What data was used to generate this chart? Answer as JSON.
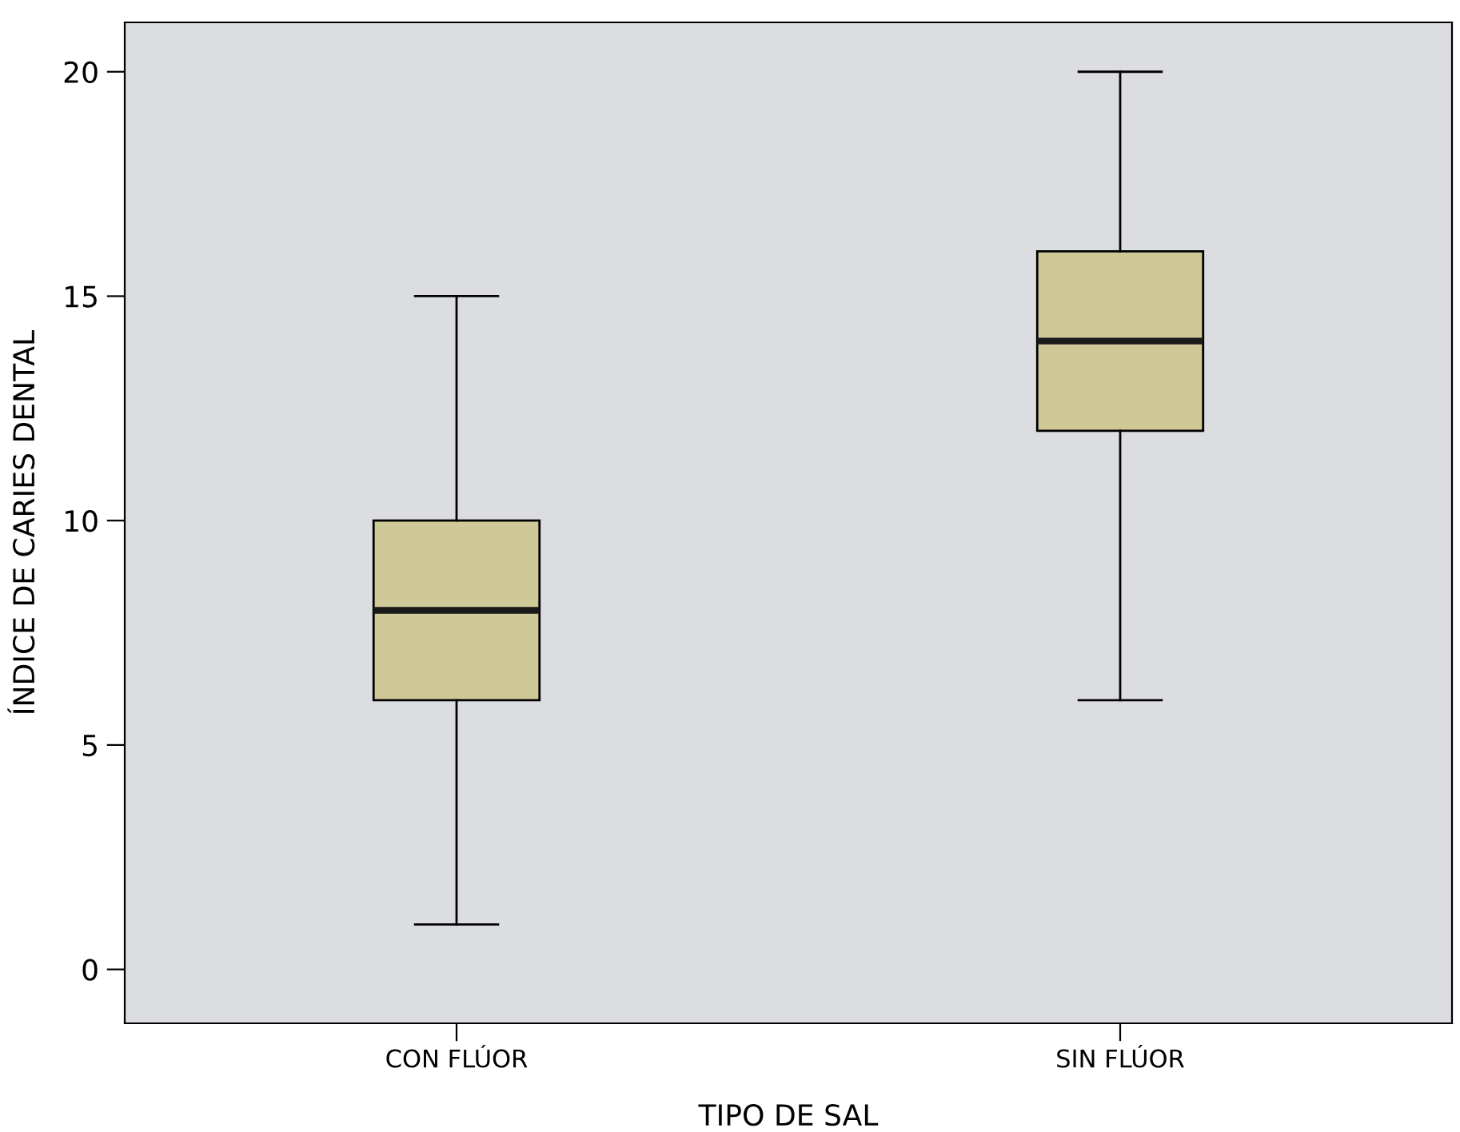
{
  "chart_data": {
    "type": "box",
    "xlabel": "TIPO DE SAL",
    "ylabel": "ÍNDICE DE CARIES DENTAL",
    "categories": [
      "CON FLÚOR",
      "SIN FLÚOR"
    ],
    "boxes": [
      {
        "low": 1,
        "q1": 6,
        "median": 8,
        "q3": 10,
        "high": 15
      },
      {
        "low": 6,
        "q1": 12,
        "median": 14,
        "q3": 16,
        "high": 20
      }
    ],
    "color": "#cfc997",
    "ylim": [
      -1.2,
      21.1
    ],
    "yticks": [
      0,
      5,
      10,
      15,
      20
    ],
    "grid": false
  }
}
